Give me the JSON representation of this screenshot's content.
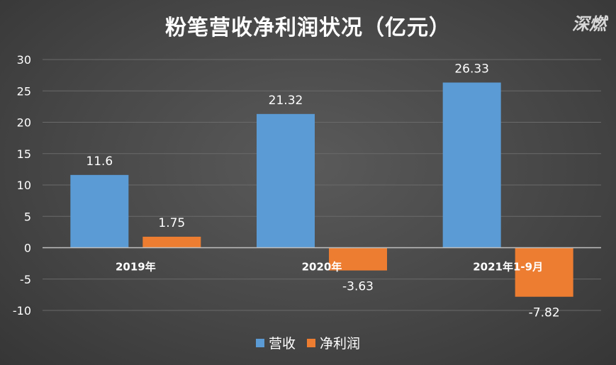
{
  "title": "粉笔营收净利润状况（亿元）",
  "watermark": "深燃",
  "colors": {
    "revenue": "#5b9bd5",
    "profit": "#ed7d31",
    "background": "#474747",
    "grid": "#6a6a6a"
  },
  "chart_data": {
    "type": "bar",
    "title": "粉笔营收净利润状况（亿元）",
    "categories": [
      "2019年",
      "2020年",
      "2021年1-9月"
    ],
    "series": [
      {
        "name": "营收",
        "values": [
          11.6,
          21.32,
          26.33
        ],
        "labels": [
          "11.6",
          "21.32",
          "26.33"
        ]
      },
      {
        "name": "净利润",
        "values": [
          1.75,
          -3.63,
          -7.82
        ],
        "labels": [
          "1.75",
          "-3.63",
          "-7.82"
        ]
      }
    ],
    "ylim": [
      -10,
      30
    ],
    "yticks": [
      "-10",
      "-5",
      "0",
      "5",
      "10",
      "15",
      "20",
      "25",
      "30"
    ],
    "xlabel": "",
    "ylabel": "",
    "grid": true,
    "legend": "bottom"
  }
}
